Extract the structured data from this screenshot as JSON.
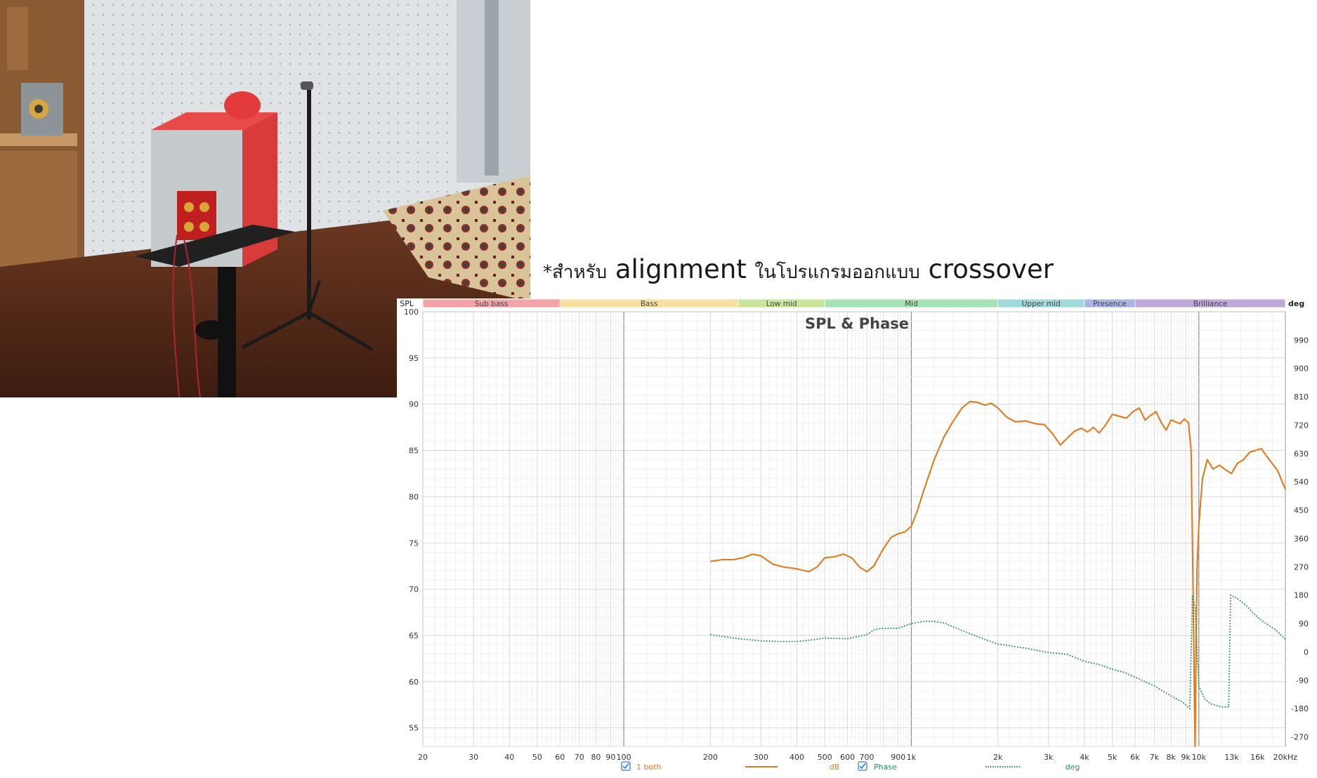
{
  "caption": {
    "prefix": "*สำหรับ",
    "word1": "alignment",
    "middle": "ในโปรแกรมออกแบบ",
    "word2": "crossover"
  },
  "chart_data": {
    "type": "line",
    "title": "SPL & Phase",
    "x_scale": "log",
    "xlim": [
      20,
      20000
    ],
    "x_ticks": [
      {
        "v": 20,
        "l": "20"
      },
      {
        "v": 30,
        "l": "30"
      },
      {
        "v": 40,
        "l": "40"
      },
      {
        "v": 50,
        "l": "50"
      },
      {
        "v": 60,
        "l": "60"
      },
      {
        "v": 70,
        "l": "70"
      },
      {
        "v": 80,
        "l": "80"
      },
      {
        "v": 90,
        "l": "90"
      },
      {
        "v": 100,
        "l": "100"
      },
      {
        "v": 200,
        "l": "200"
      },
      {
        "v": 300,
        "l": "300"
      },
      {
        "v": 400,
        "l": "400"
      },
      {
        "v": 500,
        "l": "500"
      },
      {
        "v": 600,
        "l": "600"
      },
      {
        "v": 700,
        "l": "700"
      },
      {
        "v": 900,
        "l": "900"
      },
      {
        "v": 1000,
        "l": "1k"
      },
      {
        "v": 2000,
        "l": "2k"
      },
      {
        "v": 3000,
        "l": "3k"
      },
      {
        "v": 4000,
        "l": "4k"
      },
      {
        "v": 5000,
        "l": "5k"
      },
      {
        "v": 6000,
        "l": "6k"
      },
      {
        "v": 7000,
        "l": "7k"
      },
      {
        "v": 8000,
        "l": "8k"
      },
      {
        "v": 9000,
        "l": "9k"
      },
      {
        "v": 10000,
        "l": "10k"
      },
      {
        "v": 13000,
        "l": "13k"
      },
      {
        "v": 16000,
        "l": "16k"
      },
      {
        "v": 20000,
        "l": "20kHz"
      }
    ],
    "y_left": {
      "label": "SPL",
      "lim": [
        53,
        100
      ],
      "ticks": [
        100,
        95,
        90,
        85,
        80,
        75,
        70,
        65,
        60,
        55
      ]
    },
    "y_right": {
      "label": "deg",
      "lim": [
        -300,
        1080
      ],
      "ticks": [
        990,
        900,
        810,
        720,
        630,
        540,
        450,
        360,
        270,
        180,
        90,
        0,
        -90,
        -180,
        -270
      ]
    },
    "bands": [
      {
        "name": "Sub bass",
        "from": 20,
        "to": 60,
        "color": "#f4a3a8"
      },
      {
        "name": "Bass",
        "from": 60,
        "to": 250,
        "color": "#f8dfa0"
      },
      {
        "name": "Low mid",
        "from": 250,
        "to": 500,
        "color": "#c9e79c"
      },
      {
        "name": "Mid",
        "from": 500,
        "to": 2000,
        "color": "#a6e2b4"
      },
      {
        "name": "Upper mid",
        "from": 2000,
        "to": 4000,
        "color": "#9fd9dc"
      },
      {
        "name": "Presence",
        "from": 4000,
        "to": 6000,
        "color": "#a9b6e6"
      },
      {
        "name": "Brilliance",
        "from": 6000,
        "to": 20000,
        "color": "#c0a8dd"
      }
    ],
    "series": [
      {
        "name": "1 both",
        "unit": "dB",
        "axis": "left",
        "color": "#e07a1f",
        "style": "solid",
        "points": [
          [
            200,
            73.0
          ],
          [
            220,
            73.2
          ],
          [
            240,
            73.2
          ],
          [
            260,
            73.4
          ],
          [
            280,
            73.8
          ],
          [
            300,
            73.6
          ],
          [
            330,
            72.7
          ],
          [
            360,
            72.4
          ],
          [
            400,
            72.2
          ],
          [
            440,
            71.9
          ],
          [
            470,
            72.4
          ],
          [
            500,
            73.4
          ],
          [
            540,
            73.5
          ],
          [
            580,
            73.8
          ],
          [
            620,
            73.4
          ],
          [
            660,
            72.4
          ],
          [
            700,
            71.9
          ],
          [
            740,
            72.5
          ],
          [
            800,
            74.4
          ],
          [
            850,
            75.6
          ],
          [
            900,
            76.0
          ],
          [
            950,
            76.2
          ],
          [
            1000,
            76.8
          ],
          [
            1050,
            78.5
          ],
          [
            1100,
            80.5
          ],
          [
            1200,
            84.0
          ],
          [
            1300,
            86.5
          ],
          [
            1400,
            88.2
          ],
          [
            1500,
            89.6
          ],
          [
            1600,
            90.3
          ],
          [
            1700,
            90.2
          ],
          [
            1800,
            89.9
          ],
          [
            1900,
            90.1
          ],
          [
            2000,
            89.6
          ],
          [
            2150,
            88.6
          ],
          [
            2300,
            88.1
          ],
          [
            2500,
            88.2
          ],
          [
            2700,
            87.9
          ],
          [
            2900,
            87.8
          ],
          [
            3100,
            86.8
          ],
          [
            3300,
            85.6
          ],
          [
            3500,
            86.4
          ],
          [
            3700,
            87.1
          ],
          [
            3900,
            87.4
          ],
          [
            4100,
            87.0
          ],
          [
            4300,
            87.5
          ],
          [
            4500,
            86.9
          ],
          [
            4700,
            87.6
          ],
          [
            5000,
            88.9
          ],
          [
            5300,
            88.7
          ],
          [
            5600,
            88.5
          ],
          [
            5900,
            89.2
          ],
          [
            6200,
            89.6
          ],
          [
            6500,
            88.3
          ],
          [
            6800,
            88.8
          ],
          [
            7100,
            89.2
          ],
          [
            7400,
            88.0
          ],
          [
            7700,
            87.2
          ],
          [
            8000,
            88.3
          ],
          [
            8300,
            88.1
          ],
          [
            8600,
            87.9
          ],
          [
            8900,
            88.4
          ],
          [
            9200,
            88.0
          ],
          [
            9400,
            85.0
          ],
          [
            9550,
            70.0
          ],
          [
            9700,
            53.0
          ],
          [
            9850,
            72.0
          ],
          [
            10000,
            77.0
          ],
          [
            10300,
            82.0
          ],
          [
            10700,
            84.0
          ],
          [
            11200,
            83.0
          ],
          [
            11800,
            83.4
          ],
          [
            12400,
            82.9
          ],
          [
            13000,
            82.5
          ],
          [
            13600,
            83.6
          ],
          [
            14300,
            84.0
          ],
          [
            15000,
            84.8
          ],
          [
            15700,
            85.0
          ],
          [
            16500,
            85.2
          ],
          [
            17200,
            84.4
          ],
          [
            18000,
            83.6
          ],
          [
            18800,
            82.8
          ],
          [
            19500,
            81.6
          ],
          [
            20000,
            80.8
          ]
        ]
      },
      {
        "name": "Phase",
        "unit": "deg",
        "axis": "right",
        "color": "#1f9450",
        "style": "dotted",
        "points": [
          [
            200,
            55
          ],
          [
            250,
            42
          ],
          [
            300,
            35
          ],
          [
            350,
            33
          ],
          [
            400,
            33
          ],
          [
            450,
            38
          ],
          [
            500,
            44
          ],
          [
            600,
            42
          ],
          [
            700,
            55
          ],
          [
            750,
            72
          ],
          [
            800,
            75
          ],
          [
            900,
            75
          ],
          [
            1000,
            90
          ],
          [
            1100,
            97
          ],
          [
            1200,
            97
          ],
          [
            1300,
            92
          ],
          [
            1500,
            68
          ],
          [
            1800,
            40
          ],
          [
            2000,
            25
          ],
          [
            2500,
            12
          ],
          [
            3000,
            -2
          ],
          [
            3500,
            -8
          ],
          [
            4000,
            -30
          ],
          [
            4500,
            -40
          ],
          [
            5000,
            -55
          ],
          [
            5500,
            -65
          ],
          [
            6000,
            -80
          ],
          [
            7000,
            -108
          ],
          [
            8000,
            -140
          ],
          [
            8800,
            -160
          ],
          [
            9300,
            -180
          ],
          [
            9500,
            180
          ],
          [
            9700,
            140
          ],
          [
            10000,
            -110
          ],
          [
            10500,
            -150
          ],
          [
            11000,
            -165
          ],
          [
            12000,
            -175
          ],
          [
            12700,
            -175
          ],
          [
            12900,
            180
          ],
          [
            13500,
            172
          ],
          [
            14500,
            150
          ],
          [
            15500,
            122
          ],
          [
            16500,
            100
          ],
          [
            17500,
            85
          ],
          [
            18500,
            70
          ],
          [
            19500,
            50
          ],
          [
            20000,
            40
          ]
        ]
      }
    ],
    "legend": [
      {
        "label": "1 both",
        "unit": "dB",
        "checked": true
      },
      {
        "label": "Phase",
        "unit": "deg",
        "checked": true
      }
    ]
  }
}
